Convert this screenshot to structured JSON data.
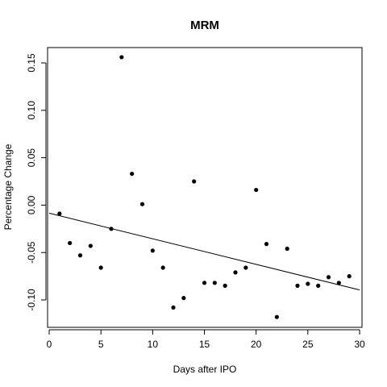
{
  "chart_data": {
    "type": "scatter",
    "title": "MRM",
    "xlabel": "Days after IPO",
    "ylabel": "Percentage Change",
    "xlim": [
      0,
      30
    ],
    "ylim": [
      -0.13,
      0.165
    ],
    "x_ticks": [
      0,
      5,
      10,
      15,
      20,
      25,
      30
    ],
    "y_ticks": [
      -0.1,
      -0.05,
      0.0,
      0.05,
      0.1,
      0.15
    ],
    "x_tick_labels": [
      "0",
      "5",
      "10",
      "15",
      "20",
      "25",
      "30"
    ],
    "y_tick_labels": [
      "-0.10",
      "-0.05",
      "0.00",
      "0.05",
      "0.10",
      "0.15"
    ],
    "grid": false,
    "series": [
      {
        "x": [
          1,
          2,
          3,
          4,
          5,
          6,
          7,
          8,
          9,
          10,
          11,
          12,
          13,
          14,
          15,
          16,
          17,
          18,
          19,
          20,
          21,
          22,
          23,
          24,
          25,
          26,
          27,
          28,
          29
        ],
        "y": [
          -0.009,
          -0.04,
          -0.053,
          -0.043,
          -0.066,
          -0.025,
          0.156,
          0.033,
          0.001,
          -0.048,
          -0.066,
          -0.108,
          -0.098,
          0.025,
          -0.082,
          -0.082,
          -0.085,
          -0.071,
          -0.066,
          0.016,
          -0.041,
          -0.118,
          -0.046,
          -0.085,
          -0.083,
          -0.085,
          -0.076,
          -0.082,
          -0.075
        ]
      }
    ],
    "trendline": {
      "x": [
        0,
        30
      ],
      "y": [
        -0.0085,
        -0.0895
      ]
    }
  }
}
